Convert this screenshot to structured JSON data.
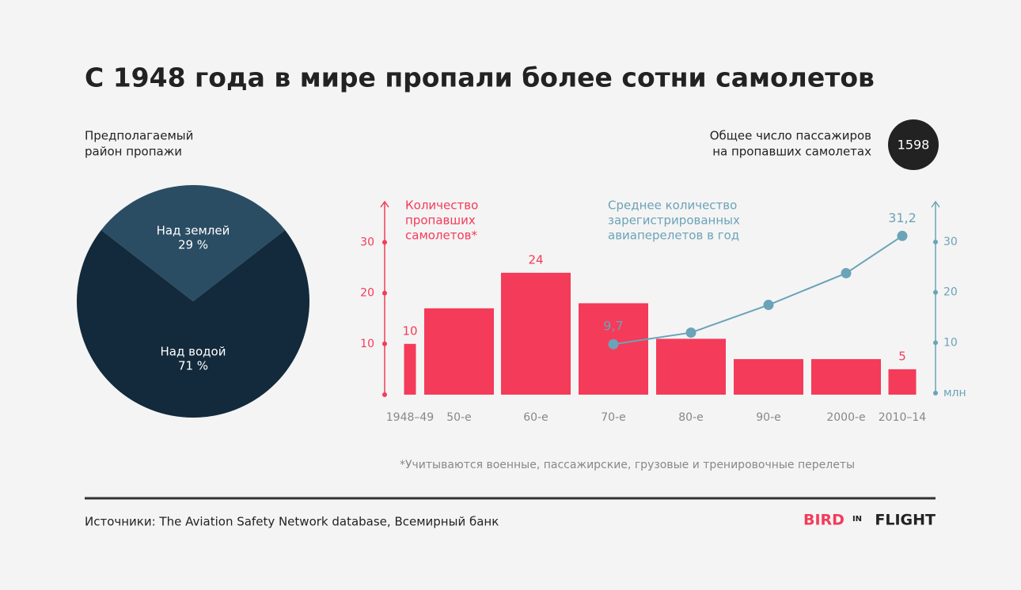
{
  "header": {
    "title": "С 1948 года в мире пропали более сотни самолетов"
  },
  "chart_data": [
    {
      "type": "pie",
      "title": [
        "Предполагаемый",
        "район пропажи"
      ],
      "categories": [
        "Над землей",
        "Над водой"
      ],
      "values": [
        29,
        71
      ],
      "value_labels": [
        "29 %",
        "71 %"
      ],
      "colors": [
        "#2a4d63",
        "#122a3b"
      ]
    },
    {
      "type": "bar",
      "categories": [
        "1948–49",
        "50-е",
        "60-е",
        "70-е",
        "80-е",
        "90-е",
        "2000-е",
        "2010–14"
      ],
      "series": [
        {
          "name": [
            "Количество",
            "пропавших",
            "самолетов*"
          ],
          "color": "#f43b5a",
          "values": [
            10,
            17,
            24,
            18,
            11,
            7,
            7,
            5
          ],
          "value_labels": [
            "10",
            null,
            "24",
            null,
            null,
            null,
            null,
            "5"
          ]
        },
        {
          "name": [
            "Среднее количество",
            "зарегистрированных",
            "авиаперелетов в год"
          ],
          "type": "line",
          "axis": "y2",
          "color": "#6ba3b8",
          "values": [
            null,
            null,
            null,
            9.7,
            12,
            17.5,
            23.8,
            31.2
          ],
          "value_labels": [
            null,
            null,
            null,
            "9,7",
            null,
            null,
            null,
            "31,2"
          ]
        }
      ],
      "ylim": [
        0,
        38
      ],
      "yticks": [
        10,
        20,
        30
      ],
      "y2lim": [
        0,
        38
      ],
      "y2ticks": [
        {
          "value": 0,
          "label": "млн"
        },
        10,
        20,
        30
      ]
    }
  ],
  "passengers": {
    "label": [
      "Общее число пассажиров",
      "на пропавших самолетах"
    ],
    "value": 1598
  },
  "footnote": "*Учитываются военные, пассажирские, грузовые и тренировочные перелеты",
  "source": "Источники: The Aviation Safety Network database, Всемирный банк",
  "logo": [
    "BIRD",
    "IN",
    "FLIGHT"
  ]
}
